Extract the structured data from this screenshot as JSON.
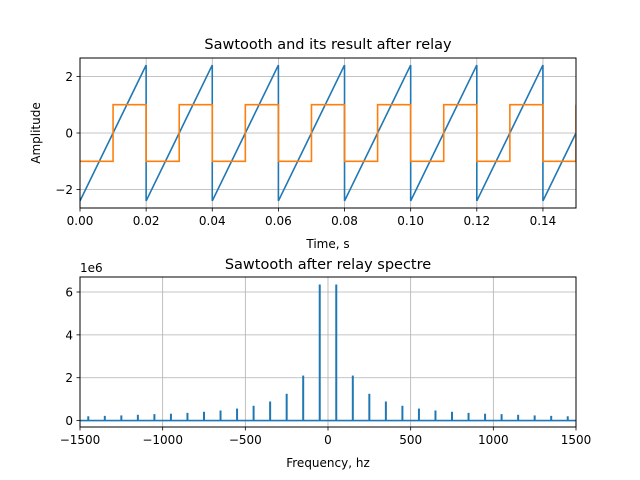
{
  "chart_data": [
    {
      "type": "line",
      "title": "Sawtooth and its result after relay",
      "xlabel": "Time, s",
      "ylabel": "Amplitude",
      "xlim": [
        0,
        0.15
      ],
      "ylim": [
        -2.65,
        2.65
      ],
      "x_ticks": [
        0.0,
        0.02,
        0.04,
        0.06,
        0.08,
        0.1,
        0.12,
        0.14
      ],
      "x_tick_labels": [
        "0.00",
        "0.02",
        "0.04",
        "0.06",
        "0.08",
        "0.10",
        "0.12",
        "0.14"
      ],
      "y_ticks": [
        -2,
        0,
        2
      ],
      "y_tick_labels": [
        "−2",
        "0",
        "2"
      ],
      "grid": true,
      "series": [
        {
          "color": "#1f77b4",
          "x": [
            0,
            0.02,
            0.02,
            0.04,
            0.04,
            0.06,
            0.06,
            0.08,
            0.08,
            0.1,
            0.1,
            0.12,
            0.12,
            0.14,
            0.14,
            0.15
          ],
          "y": [
            -2.4,
            2.4,
            -2.4,
            2.4,
            -2.4,
            2.4,
            -2.4,
            2.4,
            -2.4,
            2.4,
            -2.4,
            2.4,
            -2.4,
            2.4,
            -2.4,
            0
          ]
        },
        {
          "color": "#ff7f0e",
          "x": [
            0,
            0.01,
            0.01,
            0.02,
            0.02,
            0.03,
            0.03,
            0.04,
            0.04,
            0.05,
            0.05,
            0.06,
            0.06,
            0.07,
            0.07,
            0.08,
            0.08,
            0.09,
            0.09,
            0.1,
            0.1,
            0.11,
            0.11,
            0.12,
            0.12,
            0.13,
            0.13,
            0.14,
            0.14,
            0.15,
            0.15
          ],
          "y": [
            -1,
            -1,
            1,
            1,
            -1,
            -1,
            1,
            1,
            -1,
            -1,
            1,
            1,
            -1,
            -1,
            1,
            1,
            -1,
            -1,
            1,
            1,
            -1,
            -1,
            1,
            1,
            -1,
            -1,
            1,
            1,
            -1,
            -1,
            1
          ]
        }
      ]
    },
    {
      "type": "bar",
      "title": "Sawtooth after relay spectre",
      "xlabel": "Frequency, hz",
      "ylabel": "",
      "offset_label": "1e6",
      "xlim": [
        -1500,
        1500
      ],
      "ylim": [
        -0.3,
        6.7
      ],
      "x_ticks": [
        -1500,
        -1000,
        -500,
        0,
        500,
        1000,
        1500
      ],
      "x_tick_labels": [
        "−1500",
        "−1000",
        "−500",
        "0",
        "500",
        "1000",
        "1500"
      ],
      "y_ticks": [
        0,
        2,
        4,
        6
      ],
      "y_tick_labels": [
        "0",
        "2",
        "4",
        "6"
      ],
      "grid": true,
      "series": [
        {
          "color": "#1f77b4",
          "x": [
            -1450,
            -1350,
            -1250,
            -1150,
            -1050,
            -950,
            -850,
            -750,
            -650,
            -550,
            -450,
            -350,
            -250,
            -150,
            -50,
            50,
            150,
            250,
            350,
            450,
            550,
            650,
            750,
            850,
            950,
            1050,
            1150,
            1250,
            1350,
            1450
          ],
          "values": [
            0.2,
            0.22,
            0.24,
            0.27,
            0.3,
            0.32,
            0.36,
            0.41,
            0.47,
            0.56,
            0.69,
            0.89,
            1.25,
            2.1,
            6.35,
            6.35,
            2.1,
            1.25,
            0.89,
            0.69,
            0.56,
            0.47,
            0.41,
            0.36,
            0.32,
            0.3,
            0.27,
            0.24,
            0.22,
            0.2
          ]
        }
      ]
    }
  ]
}
